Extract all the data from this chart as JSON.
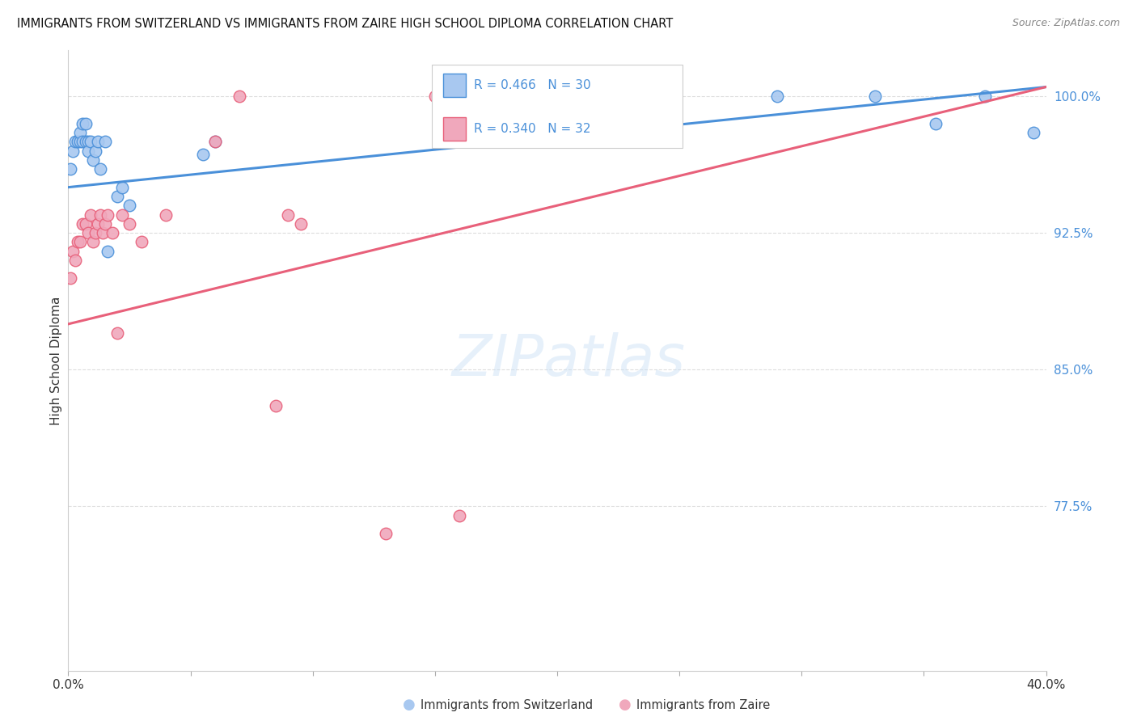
{
  "title": "IMMIGRANTS FROM SWITZERLAND VS IMMIGRANTS FROM ZAIRE HIGH SCHOOL DIPLOMA CORRELATION CHART",
  "source": "Source: ZipAtlas.com",
  "ylabel": "High School Diploma",
  "xlim": [
    0.0,
    0.4
  ],
  "ylim": [
    0.685,
    1.025
  ],
  "yticks_right": [
    0.775,
    0.85,
    0.925,
    1.0
  ],
  "ytick_right_labels": [
    "77.5%",
    "85.0%",
    "92.5%",
    "100.0%"
  ],
  "legend_label1": "Immigrants from Switzerland",
  "legend_label2": "Immigrants from Zaire",
  "r1": 0.466,
  "n1": 30,
  "r2": 0.34,
  "n2": 32,
  "color_switzerland": "#a8c8f0",
  "color_zaire": "#f0a8bc",
  "color_line1": "#4a90d9",
  "color_line2": "#e8607a",
  "background_color": "#ffffff",
  "grid_color": "#dddddd",
  "sw_x": [
    0.001,
    0.002,
    0.003,
    0.004,
    0.005,
    0.005,
    0.006,
    0.006,
    0.007,
    0.007,
    0.008,
    0.008,
    0.009,
    0.01,
    0.011,
    0.012,
    0.013,
    0.015,
    0.016,
    0.02,
    0.022,
    0.025,
    0.055,
    0.06,
    0.24,
    0.29,
    0.33,
    0.355,
    0.375,
    0.395
  ],
  "sw_y": [
    0.96,
    0.97,
    0.975,
    0.975,
    0.975,
    0.98,
    0.975,
    0.985,
    0.975,
    0.985,
    0.975,
    0.97,
    0.975,
    0.965,
    0.97,
    0.975,
    0.96,
    0.975,
    0.915,
    0.945,
    0.95,
    0.94,
    0.968,
    0.975,
    1.0,
    1.0,
    1.0,
    0.985,
    1.0,
    0.98
  ],
  "zr_x": [
    0.001,
    0.002,
    0.003,
    0.004,
    0.005,
    0.006,
    0.007,
    0.008,
    0.009,
    0.01,
    0.011,
    0.012,
    0.013,
    0.014,
    0.015,
    0.016,
    0.018,
    0.02,
    0.022,
    0.025,
    0.03,
    0.04,
    0.06,
    0.07,
    0.085,
    0.09,
    0.095,
    0.13,
    0.15,
    0.155,
    0.158,
    0.16
  ],
  "zr_y": [
    0.9,
    0.915,
    0.91,
    0.92,
    0.92,
    0.93,
    0.93,
    0.925,
    0.935,
    0.92,
    0.925,
    0.93,
    0.935,
    0.925,
    0.93,
    0.935,
    0.925,
    0.87,
    0.935,
    0.93,
    0.92,
    0.935,
    0.975,
    1.0,
    0.83,
    0.935,
    0.93,
    0.76,
    1.0,
    1.0,
    1.0,
    0.77
  ],
  "blue_line_x0": 0.0,
  "blue_line_y0": 0.95,
  "blue_line_x1": 0.4,
  "blue_line_y1": 1.005,
  "pink_line_x0": 0.0,
  "pink_line_y0": 0.875,
  "pink_line_x1": 0.4,
  "pink_line_y1": 1.005
}
